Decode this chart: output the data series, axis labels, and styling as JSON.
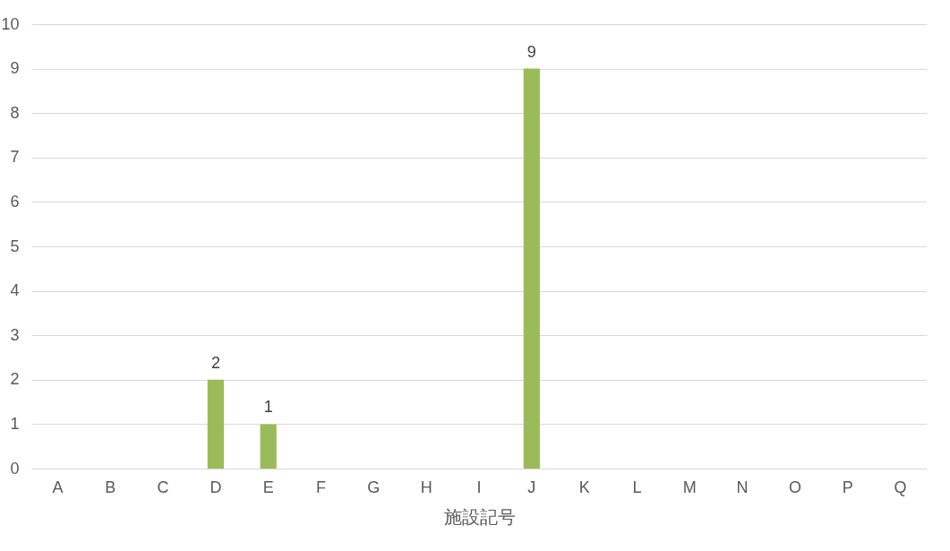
{
  "chart_data": {
    "type": "bar",
    "xlabel": "施設記号",
    "categories": [
      "A",
      "B",
      "C",
      "D",
      "E",
      "F",
      "G",
      "H",
      "I",
      "J",
      "K",
      "L",
      "M",
      "N",
      "O",
      "P",
      "Q"
    ],
    "values": [
      0,
      0,
      0,
      2,
      1,
      0,
      0,
      0,
      0,
      9,
      0,
      0,
      0,
      0,
      0,
      0,
      0
    ],
    "value_labels": [
      null,
      null,
      null,
      "2",
      "1",
      null,
      null,
      null,
      null,
      "9",
      null,
      null,
      null,
      null,
      null,
      null,
      null
    ],
    "color": "#9bbb59",
    "ylim": [
      0,
      10
    ],
    "yticks": [
      0,
      1,
      2,
      3,
      4,
      5,
      6,
      7,
      8,
      9,
      10
    ],
    "grid": "y"
  }
}
